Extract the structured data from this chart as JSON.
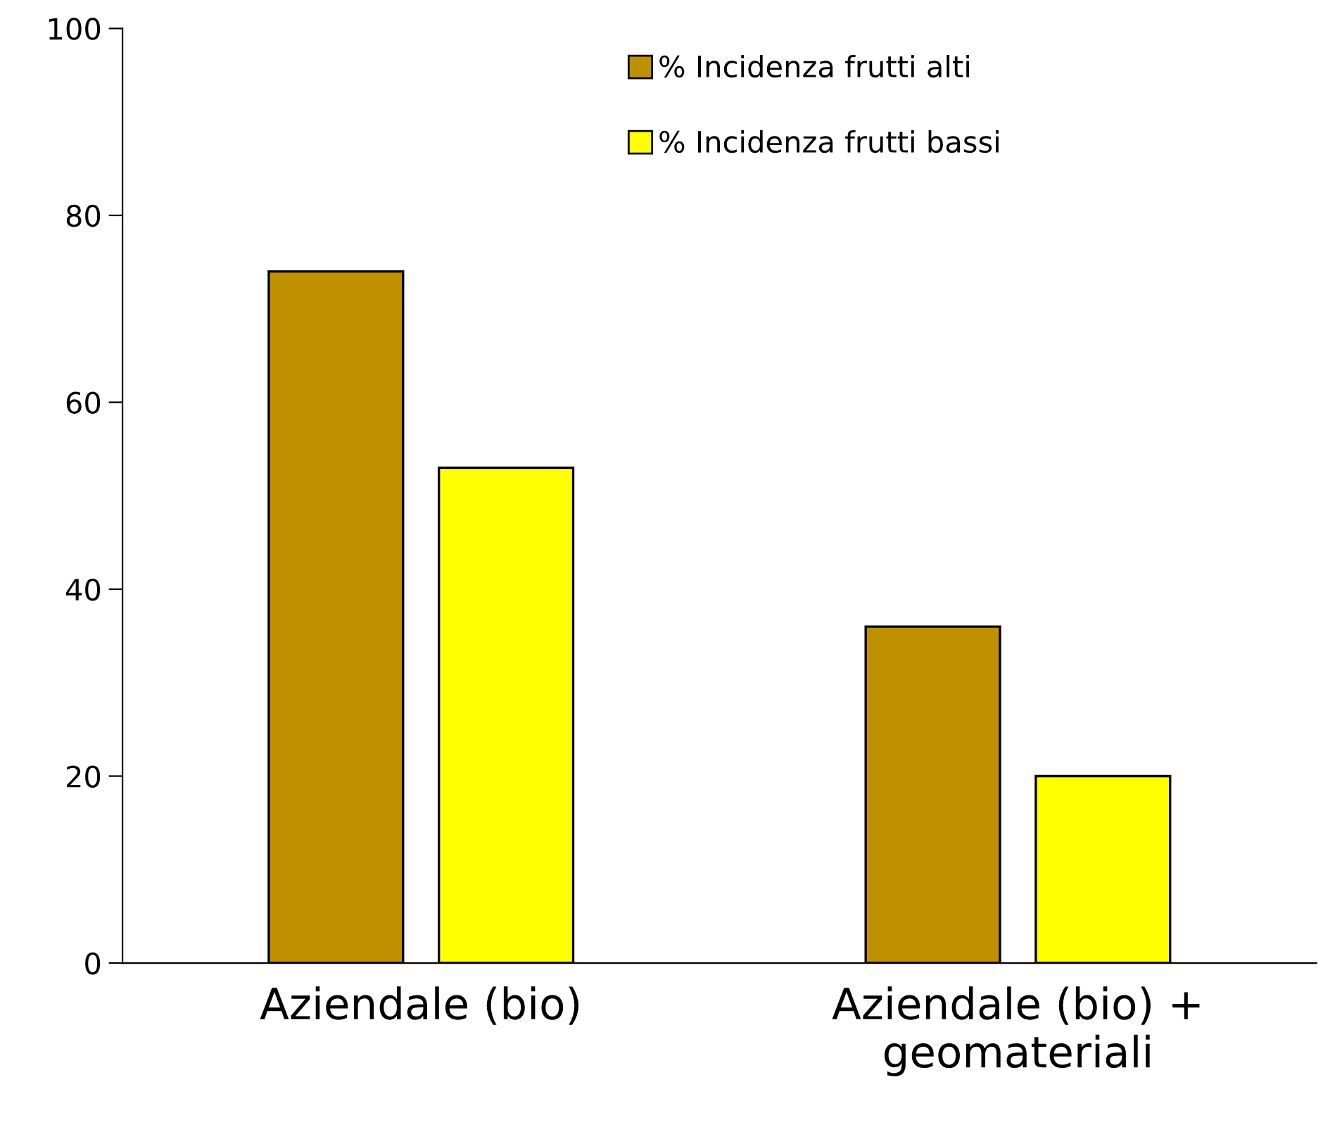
{
  "chart_data": {
    "type": "bar",
    "categories": [
      "Aziendale (bio)",
      "Aziendale (bio) +\ngeomateriali"
    ],
    "series": [
      {
        "name": "% Incidenza frutti alti",
        "color": "#bf9000",
        "values": [
          74,
          36
        ]
      },
      {
        "name": "% Incidenza frutti bassi",
        "color": "#ffff00",
        "values": [
          53,
          20
        ]
      }
    ],
    "ylim": [
      0,
      100
    ],
    "yticks": [
      0,
      20,
      40,
      60,
      80,
      100
    ],
    "grid": false,
    "legend": "top"
  }
}
